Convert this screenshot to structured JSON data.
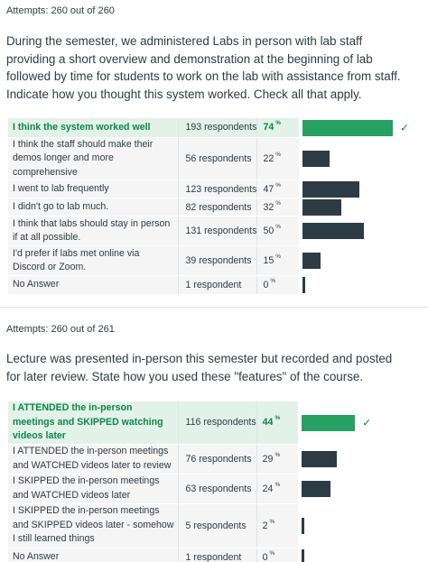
{
  "q1": {
    "attempts": "Attempts: 260 out of 260",
    "question": "During the semester, we administered Labs in person with lab staff providing a short overview and demonstration at the beginning of lab followed by time for students to work on the lab with assistance from staff. Indicate how you thought this system worked. Check all that apply.",
    "answers": [
      {
        "label": "I think the system worked well",
        "respondents": "193 respondents",
        "percent": "74",
        "pct_value": 74,
        "correct": true
      },
      {
        "label": "I think the staff should make their demos longer and more comprehensive",
        "respondents": "56 respondents",
        "percent": "22",
        "pct_value": 22,
        "correct": false
      },
      {
        "label": "I went to lab frequently",
        "respondents": "123 respondents",
        "percent": "47",
        "pct_value": 47,
        "correct": false
      },
      {
        "label": "I didn't go to lab much.",
        "respondents": "82 respondents",
        "percent": "32",
        "pct_value": 32,
        "correct": false
      },
      {
        "label": "I think that labs should stay in person if at all possible.",
        "respondents": "131 respondents",
        "percent": "50",
        "pct_value": 50,
        "correct": false
      },
      {
        "label": "I'd prefer if labs met online via Discord or Zoom.",
        "respondents": "39 respondents",
        "percent": "15",
        "pct_value": 15,
        "correct": false
      },
      {
        "label": "No Answer",
        "respondents": "1 respondent",
        "percent": "0",
        "pct_value": 0,
        "correct": false
      }
    ]
  },
  "q2": {
    "attempts": "Attempts: 260 out of 261",
    "question": "Lecture was presented in-person this semester but recorded and posted for later review. State how you used these \"features\" of the course.",
    "answers": [
      {
        "label": "I ATTENDED the in-person meetings and SKIPPED watching videos later",
        "respondents": "116 respondents",
        "percent": "44",
        "pct_value": 44,
        "correct": true
      },
      {
        "label": "I ATTENDED the in-person meetings and WATCHED videos later to review",
        "respondents": "76 respondents",
        "percent": "29",
        "pct_value": 29,
        "correct": false
      },
      {
        "label": "I SKIPPED the in-person meetings and WATCHED videos later",
        "respondents": "63 respondents",
        "percent": "24",
        "pct_value": 24,
        "correct": false
      },
      {
        "label": "I SKIPPED the in-person meetings and SKIPPED videos later - somehow I still learned things",
        "respondents": "5 respondents",
        "percent": "2",
        "pct_value": 2,
        "correct": false
      },
      {
        "label": "No Answer",
        "respondents": "1 respondent",
        "percent": "0",
        "pct_value": 0,
        "correct": false
      }
    ]
  },
  "percent_symbol": "%",
  "check_icon": "checkmark-icon",
  "colors": {
    "correct_bar": "#26a163",
    "bar": "#2d3b45",
    "correct_text": "#0b874b",
    "correct_bg": "#e3f2e8"
  }
}
